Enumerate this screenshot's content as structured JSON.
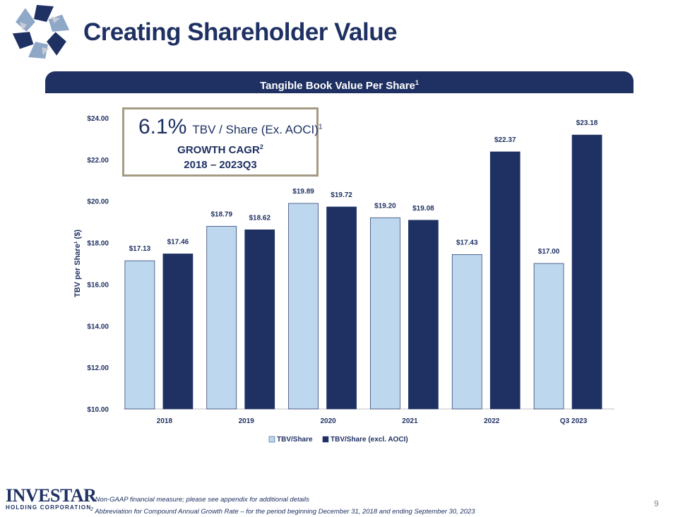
{
  "title": "Creating Shareholder Value",
  "banner": {
    "text": "Tangible Book Value Per Share",
    "sup": "1"
  },
  "cagr": {
    "percent": "6.1%",
    "label": "TBV / Share (Ex. AOCI)",
    "label_sup": "1",
    "line1": "GROWTH CAGR",
    "line1_sup": "2",
    "line2": "2018 – 2023Q3"
  },
  "chart_data": {
    "type": "bar",
    "title": "Tangible Book Value Per Share",
    "xlabel": "",
    "ylabel": "TBV per Share¹ ($)",
    "categories": [
      "2018",
      "2019",
      "2020",
      "2021",
      "2022",
      "Q3 2023"
    ],
    "series": [
      {
        "name": "TBV/Share",
        "color": "#bdd7ee",
        "values": [
          17.13,
          18.79,
          19.89,
          19.2,
          17.43,
          17.0
        ],
        "labels": [
          "$17.13",
          "$18.79",
          "$19.89",
          "$19.20",
          "$17.43",
          "$17.00"
        ]
      },
      {
        "name": "TBV/Share (excl. AOCI)",
        "color": "#1f3163",
        "values": [
          17.46,
          18.62,
          19.72,
          19.08,
          22.37,
          23.18
        ],
        "labels": [
          "$17.46",
          "$18.62",
          "$19.72",
          "$19.08",
          "$22.37",
          "$23.18"
        ]
      }
    ],
    "ylim": [
      10,
      24
    ],
    "yticks": [
      10,
      12,
      14,
      16,
      18,
      20,
      22,
      24
    ],
    "ytick_labels": [
      "$10.00",
      "$12.00",
      "$14.00",
      "$16.00",
      "$18.00",
      "$20.00",
      "$22.00",
      "$24.00"
    ],
    "grid": false,
    "legend": "bottom"
  },
  "footnotes": [
    {
      "sup": "1",
      "text": " Non-GAAP financial measure; please see appendix  for additional details"
    },
    {
      "sup": "2",
      "text": " Abbreviation  for Compound  Annual Growth Rate – for the period beginning  December 31, 2018 and ending September 30, 2023"
    }
  ],
  "brand": {
    "name": "INVESTAR",
    "sub": "HOLDING CORPORATION"
  },
  "page_number": "9",
  "colors": {
    "navy": "#1f3163",
    "light_blue": "#bdd7ee",
    "box_border": "#a59b85"
  }
}
